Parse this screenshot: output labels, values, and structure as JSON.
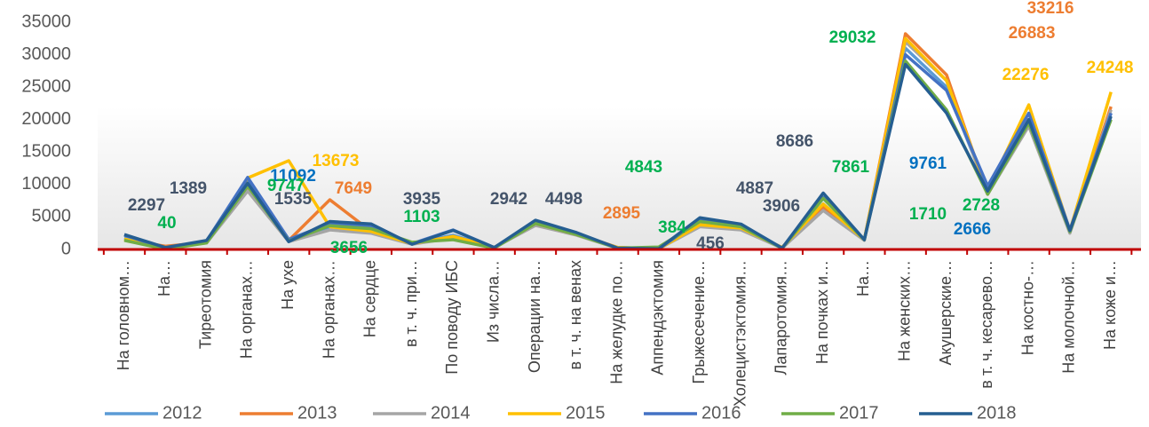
{
  "chart_data": {
    "type": "line",
    "categories": [
      "На головном…",
      "На…",
      "Тиреотомия",
      "На органах…",
      "На ухе",
      "На органах…",
      "На сердце",
      "в т. ч. при…",
      "По поводу ИБС",
      "Из числа…",
      "Операции на…",
      "в т. ч. на венах",
      "На желудке по…",
      "Аппендэктомия",
      "Грыжесечение…",
      "Холецистэктомия…",
      "Лапаротомия…",
      "На почках и…",
      "На…",
      "На женских…",
      "Акушерские…",
      "в т. ч. кесарево…",
      "На костно-…",
      "На молочной…",
      "На коже и…"
    ],
    "series": [
      {
        "name": "2012",
        "color": "#5b9bd5",
        "values": [
          1800,
          200,
          1200,
          10500,
          1300,
          3500,
          3000,
          900,
          2200,
          300,
          4000,
          2300,
          300,
          100,
          4000,
          3300,
          300,
          7000,
          1500,
          31000,
          25000,
          9000,
          20000,
          2800,
          21000
        ]
      },
      {
        "name": "2013",
        "color": "#ed7d31",
        "values": [
          1500,
          500,
          1100,
          9500,
          1400,
          7649,
          2800,
          900,
          2000,
          300,
          3900,
          2400,
          300,
          100,
          3800,
          3200,
          300,
          6500,
          1500,
          33216,
          26883,
          8500,
          20000,
          2700,
          22000
        ]
      },
      {
        "name": "2014",
        "color": "#a5a5a5",
        "values": [
          1600,
          300,
          1000,
          9000,
          1200,
          3000,
          2500,
          800,
          1800,
          300,
          3700,
          2200,
          200,
          100,
          3500,
          3000,
          200,
          6000,
          1400,
          32000,
          26000,
          8500,
          19000,
          2500,
          21500
        ]
      },
      {
        "name": "2015",
        "color": "#ffc000",
        "values": [
          1600,
          300,
          1100,
          11000,
          13673,
          3500,
          2800,
          900,
          2000,
          300,
          4000,
          2300,
          300,
          100,
          3800,
          3300,
          300,
          7000,
          1500,
          32500,
          26000,
          9000,
          22276,
          2900,
          24248
        ]
      },
      {
        "name": "2016",
        "color": "#4472c4",
        "values": [
          2200,
          200,
          1300,
          11092,
          1535,
          4000,
          3500,
          900,
          3000,
          300,
          4300,
          2500,
          200,
          100,
          4500,
          3800,
          200,
          8000,
          1500,
          30000,
          24500,
          9761,
          21000,
          3000,
          21000
        ]
      },
      {
        "name": "2017",
        "color": "#70ad47",
        "values": [
          1400,
          40,
          1000,
          9747,
          1300,
          3656,
          3200,
          1103,
          1500,
          200,
          4000,
          2300,
          200,
          384,
          4300,
          3500,
          200,
          7861,
          1500,
          29032,
          21500,
          8500,
          19500,
          2728,
          20000
        ]
      },
      {
        "name": "2018",
        "color": "#255e91",
        "values": [
          2297,
          300,
          1389,
          10200,
          1200,
          4300,
          3935,
          800,
          2942,
          300,
          4498,
          2600,
          200,
          100,
          4887,
          3906,
          200,
          8686,
          1500,
          28500,
          21000,
          9000,
          20000,
          2900,
          20500
        ]
      }
    ],
    "data_labels": [
      {
        "value": 2297,
        "color": "#44546a"
      },
      {
        "value": 40,
        "color": "#00b050"
      },
      {
        "value": 1389,
        "color": "#44546a"
      },
      {
        "value": 11092,
        "color": "#0070c0"
      },
      {
        "value": 9747,
        "color": "#00b050"
      },
      {
        "value": 1535,
        "color": "#44546a"
      },
      {
        "value": 13673,
        "color": "#ffc000"
      },
      {
        "value": 7649,
        "color": "#ed7d31"
      },
      {
        "value": 3656,
        "color": "#00b050"
      },
      {
        "value": 3935,
        "color": "#44546a"
      },
      {
        "value": 1103,
        "color": "#00b050"
      },
      {
        "value": 2942,
        "color": "#44546a"
      },
      {
        "value": 4498,
        "color": "#44546a"
      },
      {
        "value": 2895,
        "color": "#ed7d31"
      },
      {
        "value": 4843,
        "color": "#00b050"
      },
      {
        "value": 384,
        "color": "#00b050"
      },
      {
        "value": 456,
        "color": "#44546a"
      },
      {
        "value": 4887,
        "color": "#44546a"
      },
      {
        "value": 3906,
        "color": "#44546a"
      },
      {
        "value": 8686,
        "color": "#44546a"
      },
      {
        "value": 7861,
        "color": "#00b050"
      },
      {
        "value": 29032,
        "color": "#00b050"
      },
      {
        "value": 9761,
        "color": "#0070c0"
      },
      {
        "value": 1710,
        "color": "#00b050"
      },
      {
        "value": 2728,
        "color": "#00b050"
      },
      {
        "value": 2666,
        "color": "#0070c0"
      },
      {
        "value": 33216,
        "color": "#ed7d31"
      },
      {
        "value": 26883,
        "color": "#ed7d31"
      },
      {
        "value": 22276,
        "color": "#ffc000"
      },
      {
        "value": 24248,
        "color": "#ffc000"
      }
    ],
    "ylim": [
      0,
      35000
    ],
    "yticks": [
      0,
      5000,
      10000,
      15000,
      20000,
      25000,
      30000,
      35000
    ],
    "axis_color": "#c00000",
    "legend": "bottom"
  }
}
